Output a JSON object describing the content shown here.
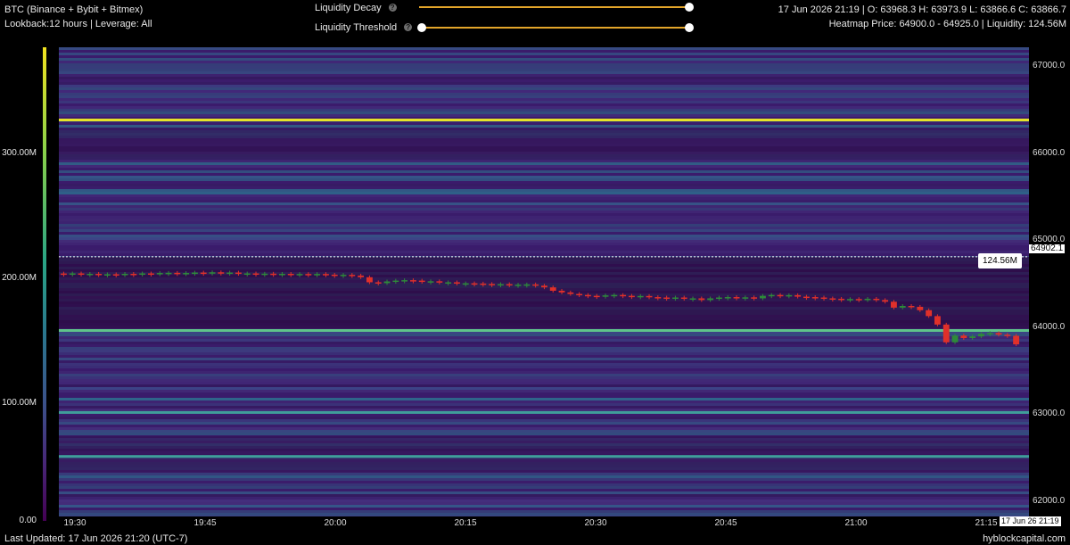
{
  "header": {
    "title": "BTC (Binance + Bybit + Bitmex)",
    "subtitle": "Lookback:12 hours | Leverage: All",
    "ohlc": "17 Jun 2026 21:19 | O: 63968.3 H: 63973.9 L: 63866.6 C: 63866.7",
    "heatmap_info": "Heatmap Price: 64900.0 - 64925.0 | Liquidity: 124.56M"
  },
  "controls": {
    "liquidity_decay": {
      "label": "Liquidity Decay",
      "help": "?",
      "value": 1.0
    },
    "liquidity_threshold": {
      "label": "Liquidity Threshold",
      "help": "?",
      "min_value": 0.0,
      "max_value": 1.0
    }
  },
  "colorbar": {
    "ticks": [
      "300.00M",
      "200.00M",
      "100.00M",
      "0.00"
    ],
    "tick_values": [
      300,
      200,
      100,
      0
    ],
    "max": 380,
    "colors": [
      "#440154",
      "#482677",
      "#3b528b",
      "#2a788e",
      "#2aa585",
      "#8ad24a",
      "#f2e31f"
    ]
  },
  "footer": {
    "updated": "Last Updated: 17 Jun 2026 21:20 (UTC-7)",
    "brand": "hyblockcapital.com"
  },
  "chart_data": {
    "type": "heatmap",
    "y_ticks": [
      "67000.0",
      "66000.0",
      "65000.0",
      "64000.0",
      "63000.0",
      "62000.0"
    ],
    "y_tick_values": [
      67000,
      66000,
      65000,
      64000,
      63000,
      62000
    ],
    "ylim": [
      61830,
      67380
    ],
    "x_ticks": [
      "19:30",
      "19:45",
      "20:00",
      "20:15",
      "20:30",
      "20:45",
      "21:00",
      "21:15"
    ],
    "x_tick_minutes": [
      1170,
      1185,
      1200,
      1215,
      1230,
      1245,
      1260,
      1275
    ],
    "xlim_minutes": [
      1170,
      1282
    ],
    "current_price": 64902.1,
    "current_price_label": "64902.1",
    "liquidity_label": "124.56M",
    "time_label": "17 Jun 26 21:19",
    "key_levels": [
      {
        "price": 66520,
        "liquidity_M": 360
      },
      {
        "price": 64030,
        "liquidity_M": 160
      },
      {
        "price": 63060,
        "liquidity_M": 140
      },
      {
        "price": 62540,
        "liquidity_M": 120
      }
    ],
    "candles_close": [
      64700,
      64705,
      64698,
      64700,
      64693,
      64695,
      64690,
      64700,
      64690,
      64705,
      64700,
      64710,
      64712,
      64705,
      64710,
      64715,
      64712,
      64718,
      64712,
      64715,
      64700,
      64705,
      64698,
      64702,
      64698,
      64700,
      64692,
      64698,
      64694,
      64698,
      64690,
      64680,
      64688,
      64680,
      64660,
      64600,
      64590,
      64610,
      64620,
      64625,
      64620,
      64610,
      64612,
      64598,
      64600,
      64585,
      64588,
      64585,
      64580,
      64575,
      64578,
      64570,
      64572,
      64575,
      64560,
      64540,
      64500,
      64480,
      64462,
      64450,
      64440,
      64432,
      64445,
      64450,
      64440,
      64430,
      64438,
      64425,
      64420,
      64415,
      64420,
      64405,
      64410,
      64390,
      64410,
      64420,
      64425,
      64420,
      64422,
      64410,
      64440,
      64450,
      64440,
      64448,
      64430,
      64425,
      64420,
      64410,
      64405,
      64400,
      64402,
      64395,
      64405,
      64390,
      64370,
      64300,
      64320,
      64310,
      64270,
      64200,
      64100,
      63890,
      63970,
      63940,
      63960,
      63990,
      64000,
      63980,
      63967,
      63866
    ]
  }
}
